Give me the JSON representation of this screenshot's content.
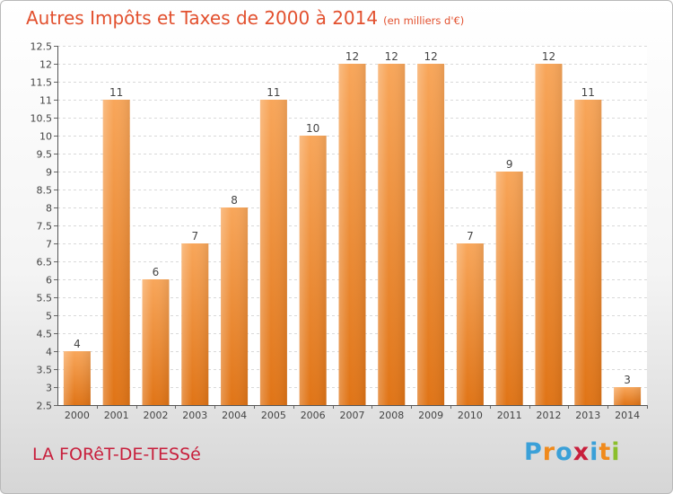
{
  "chart_data": {
    "type": "bar",
    "title": "Autres Impôts et Taxes de 2000 à 2014",
    "subtitle": "(en milliers d'€)",
    "categories": [
      "2000",
      "2001",
      "2002",
      "2003",
      "2004",
      "2005",
      "2006",
      "2007",
      "2008",
      "2009",
      "2010",
      "2011",
      "2012",
      "2013",
      "2014"
    ],
    "values": [
      4,
      11,
      6,
      7,
      8,
      11,
      10,
      12,
      12,
      12,
      7,
      9,
      12,
      11,
      3
    ],
    "ylim": [
      2.5,
      12.5
    ],
    "yticks": [
      "2.5",
      "3",
      "3.5",
      "4",
      "4.5",
      "5",
      "5.5",
      "6",
      "6.5",
      "7",
      "7.5",
      "8",
      "8.5",
      "9",
      "9.5",
      "10",
      "10.5",
      "11",
      "11.5",
      "12",
      "12.5"
    ],
    "grid": true,
    "bar_color": "#f0882d"
  },
  "footer": {
    "commune": "LA FORêT-DE-TESSé",
    "logo_letters": [
      "P",
      "r",
      "o",
      "x",
      "i",
      "t",
      "i"
    ],
    "logo_colors": [
      "#3aa0d8",
      "#f08a1c",
      "#3aa0d8",
      "#c81f3c",
      "#3aa0d8",
      "#f08a1c",
      "#8bbf2c"
    ]
  }
}
